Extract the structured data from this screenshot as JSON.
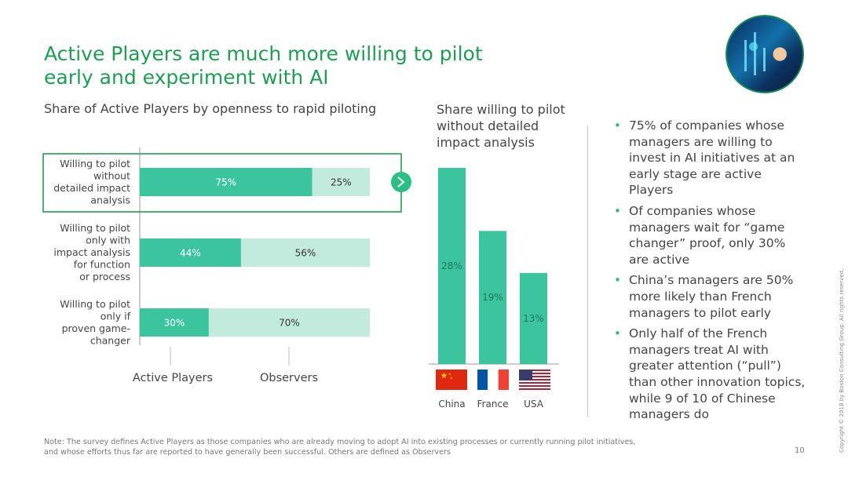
{
  "slide": {
    "title_line1": "Active Players are much more willing to pilot",
    "title_line2": "early and experiment with AI",
    "page_number": "10",
    "copyright": "Copyright © 2018 by Boston Consulting Group. All rights reserved.",
    "footnote_line1": "Note: The survey defines Active Players as those companies who are already moving to adopt AI into existing processes or currently running pilot initiatives,",
    "footnote_line2": "and whose efforts thus far are reported to have generally been successful. Others are defined as Observers",
    "colors": {
      "green_title": "#1f9d55",
      "active": "#3cc49e",
      "observers": "#c2eadd",
      "arrow": "#2bbf86"
    }
  },
  "bullets": [
    "75% of companies whose managers are willing to invest in AI initiatives at an early stage are active Players",
    "Of companies whose managers wait for “game changer” proof, only 30% are active",
    "China’s managers are 50% more likely than French managers to pilot early",
    "Only half of the French managers treat AI with greater attention (“pull”) than other innovation topics, while 9 of 10 of Chinese managers do"
  ],
  "chart_data": [
    {
      "type": "bar",
      "orientation": "horizontal",
      "stacked": true,
      "title": "Share of Active Players by openness to rapid piloting",
      "categories": [
        [
          "Willing to pilot",
          "without",
          "detailed impact",
          "analysis"
        ],
        [
          "Willing to pilot",
          "only with",
          "impact analysis",
          "for function",
          "or process"
        ],
        [
          "Willing to pilot",
          "only if",
          "proven game-",
          "changer"
        ]
      ],
      "series": [
        {
          "name": "Active Players",
          "values": [
            75,
            44,
            30
          ],
          "labels": [
            "75%",
            "44%",
            "30%"
          ]
        },
        {
          "name": "Observers",
          "values": [
            25,
            56,
            70
          ],
          "labels": [
            "25%",
            "56%",
            "70%"
          ]
        }
      ],
      "xlim": [
        0,
        100
      ],
      "highlighted_category_index": 0,
      "legend": "bottom"
    },
    {
      "type": "bar",
      "title": "Share willing to pilot without detailed impact analysis",
      "categories": [
        "China",
        "France",
        "USA"
      ],
      "values": [
        28,
        19,
        13
      ],
      "labels": [
        "28%",
        "19%",
        "13%"
      ],
      "flags": [
        "china-flag-icon",
        "france-flag-icon",
        "usa-flag-icon"
      ],
      "ylim": [
        0,
        35
      ]
    }
  ]
}
